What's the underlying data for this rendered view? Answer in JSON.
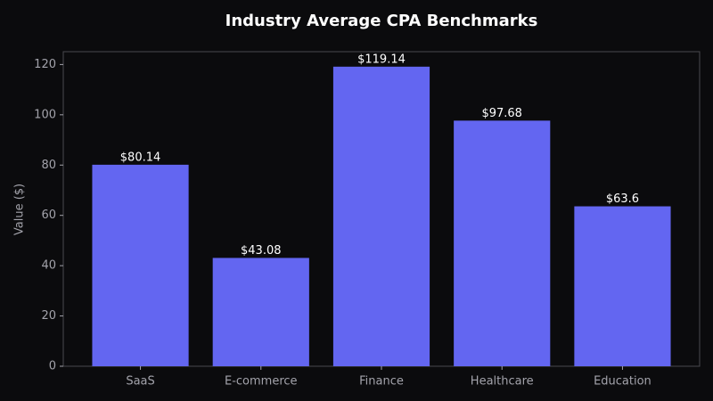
{
  "chart_data": {
    "type": "bar",
    "title": "Industry Average CPA Benchmarks",
    "ylabel": "Value ($)",
    "categories": [
      "SaaS",
      "E-commerce",
      "Finance",
      "Healthcare",
      "Education"
    ],
    "values": [
      80.14,
      43.08,
      119.14,
      97.68,
      63.6
    ],
    "value_labels": [
      "$80.14",
      "$43.08",
      "$119.14",
      "$97.68",
      "$63.6"
    ],
    "color": "#6366f1",
    "ylim": [
      0,
      125.1
    ],
    "yticks": [
      0,
      20,
      40,
      60,
      80,
      100,
      120
    ],
    "grid": false
  }
}
